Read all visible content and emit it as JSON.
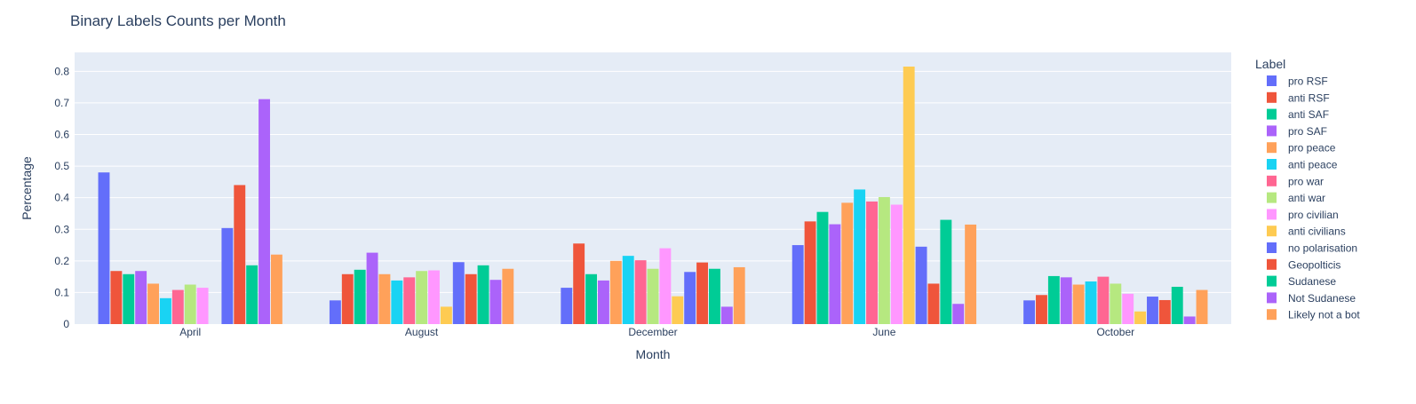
{
  "chart_data": {
    "type": "bar",
    "title": "Binary Labels Counts per Month",
    "xlabel": "Month",
    "ylabel": "Percentage",
    "ylim": [
      0,
      0.86
    ],
    "yticks": [
      0,
      0.1,
      0.2,
      0.3,
      0.4,
      0.5,
      0.6,
      0.7,
      0.8
    ],
    "ytick_labels": [
      "0",
      "0.1",
      "0.2",
      "0.3",
      "0.4",
      "0.5",
      "0.6",
      "0.7",
      "0.8"
    ],
    "grid": true,
    "legend_title": "Label",
    "legend_position": "right",
    "categories": [
      "April",
      "August",
      "December",
      "June",
      "October"
    ],
    "series": [
      {
        "name": "pro RSF",
        "color": "#636efa",
        "values": [
          0.48,
          0.075,
          0.115,
          0.25,
          0.075
        ]
      },
      {
        "name": "anti RSF",
        "color": "#ef553b",
        "values": [
          0.168,
          0.158,
          0.255,
          0.325,
          0.092
        ]
      },
      {
        "name": "anti SAF",
        "color": "#00cc96",
        "values": [
          0.158,
          0.172,
          0.158,
          0.355,
          0.152
        ]
      },
      {
        "name": "pro SAF",
        "color": "#ab63fa",
        "values": [
          0.168,
          0.226,
          0.138,
          0.316,
          0.148
        ]
      },
      {
        "name": "pro peace",
        "color": "#ffa15a",
        "values": [
          0.128,
          0.158,
          0.2,
          0.384,
          0.125
        ]
      },
      {
        "name": "anti peace",
        "color": "#19d3f3",
        "values": [
          0.082,
          0.138,
          0.216,
          0.426,
          0.135
        ]
      },
      {
        "name": "pro war",
        "color": "#ff6692",
        "values": [
          0.108,
          0.148,
          0.202,
          0.388,
          0.15
        ]
      },
      {
        "name": "anti war",
        "color": "#b6e880",
        "values": [
          0.125,
          0.168,
          0.175,
          0.402,
          0.128
        ]
      },
      {
        "name": "pro civilian",
        "color": "#ff97ff",
        "values": [
          0.115,
          0.17,
          0.24,
          0.378,
          0.096
        ]
      },
      {
        "name": "anti civilians",
        "color": "#fecb52",
        "values": [
          null,
          0.055,
          0.088,
          0.815,
          0.04
        ]
      },
      {
        "name": "no polarisation",
        "color": "#636efa",
        "values": [
          0.304,
          0.196,
          0.165,
          0.245,
          0.087
        ]
      },
      {
        "name": "Geopolticis",
        "color": "#ef553b",
        "values": [
          0.44,
          0.158,
          0.195,
          0.128,
          0.076
        ]
      },
      {
        "name": "Sudanese",
        "color": "#00cc96",
        "values": [
          0.186,
          0.186,
          0.175,
          0.33,
          0.118
        ]
      },
      {
        "name": "Not Sudanese",
        "color": "#ab63fa",
        "values": [
          0.712,
          0.14,
          0.055,
          0.064,
          0.024
        ]
      },
      {
        "name": "Likely not a bot",
        "color": "#ffa15a",
        "values": [
          0.22,
          0.175,
          0.18,
          0.315,
          0.108
        ]
      }
    ]
  }
}
